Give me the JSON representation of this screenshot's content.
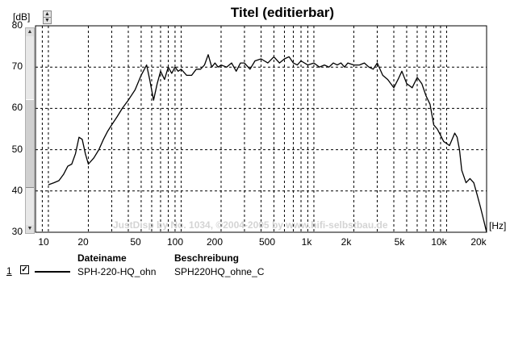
{
  "window": {
    "title": "Titel (editierbar)"
  },
  "y_axis": {
    "unit_label": "[dB]",
    "ticks": [
      "80",
      "70",
      "60",
      "50",
      "40",
      "30"
    ]
  },
  "x_axis": {
    "unit_label": "[Hz]",
    "ticks": [
      "10",
      "20",
      "50",
      "100",
      "200",
      "500",
      "1k",
      "2k",
      "5k",
      "10k",
      "20k"
    ]
  },
  "watermark": "JustDisp by No. 1034, ©2004-2005 by www.hifi-selbstbau.de",
  "spinner": {
    "up_icon": "arrow-up-icon",
    "down_icon": "arrow-down-icon"
  },
  "legend": {
    "headers": {
      "filename": "Dateiname",
      "description": "Beschreibung"
    },
    "rows": [
      {
        "index": "1",
        "checked": true,
        "filename": "SPH-220-HQ_ohn",
        "description": "SPH220HQ_ohne_C"
      }
    ]
  },
  "chart_data": {
    "type": "line",
    "title": "Titel (editierbar)",
    "xlabel": "[Hz]",
    "ylabel": "[dB]",
    "x_scale": "log",
    "xlim": [
      8,
      20000
    ],
    "ylim": [
      30,
      80
    ],
    "grid": true,
    "series": [
      {
        "name": "SPH-220-HQ_ohn",
        "x": [
          10,
          11,
          12,
          13,
          14,
          15,
          16,
          17,
          18,
          19,
          20,
          22,
          24,
          26,
          28,
          30,
          33,
          36,
          40,
          45,
          50,
          55,
          58,
          62,
          66,
          70,
          75,
          80,
          85,
          90,
          95,
          100,
          110,
          120,
          130,
          140,
          150,
          160,
          170,
          180,
          190,
          200,
          220,
          240,
          260,
          280,
          300,
          330,
          360,
          400,
          450,
          500,
          550,
          600,
          650,
          700,
          750,
          800,
          900,
          1000,
          1100,
          1200,
          1300,
          1400,
          1500,
          1600,
          1700,
          1800,
          2000,
          2200,
          2400,
          2600,
          2800,
          3000,
          3300,
          3600,
          4000,
          4300,
          4600,
          5000,
          5500,
          6000,
          6500,
          7000,
          7500,
          8000,
          8500,
          9000,
          9500,
          10000,
          10500,
          11000,
          11500,
          12000,
          12500,
          13000,
          14000,
          15000,
          16000,
          17000,
          18000,
          19000,
          20000
        ],
        "y": [
          41.5,
          42,
          42.5,
          44,
          46,
          46.5,
          49,
          53,
          52.5,
          49,
          46.5,
          48,
          50,
          52.5,
          54.5,
          56,
          58,
          60,
          62,
          64.5,
          68,
          70.5,
          67,
          62,
          66,
          69,
          67,
          70,
          68.5,
          70,
          69,
          69.5,
          68,
          68,
          69.5,
          69.5,
          70.5,
          73,
          70,
          71,
          70,
          70.5,
          70,
          71,
          69,
          71,
          71,
          69.5,
          71.5,
          72,
          71,
          72.5,
          71,
          72,
          72.5,
          71,
          70.5,
          71.5,
          70.5,
          71,
          70,
          70.5,
          70,
          71,
          70.5,
          71,
          70,
          71,
          70.5,
          70.5,
          71,
          70,
          69.5,
          71,
          68,
          67,
          65,
          67,
          69,
          66,
          65,
          67.5,
          66,
          63,
          61,
          56,
          55,
          53.5,
          52,
          51.5,
          51,
          52.5,
          54,
          53,
          50,
          45,
          42,
          43,
          42,
          39,
          36,
          33,
          29
        ]
      }
    ]
  }
}
